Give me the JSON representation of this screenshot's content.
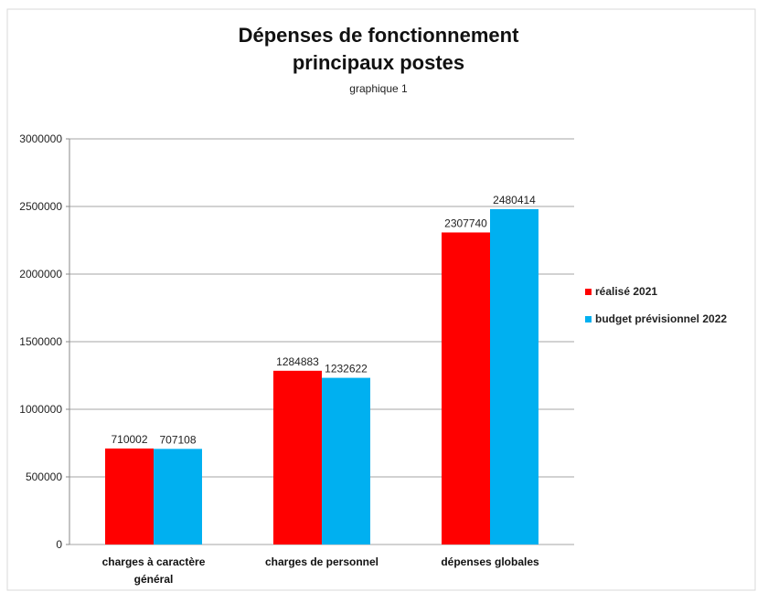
{
  "chart_data": {
    "type": "bar",
    "title": "Dépenses de fonctionnement principaux postes",
    "subtitle": "graphique 1",
    "categories": [
      "charges à caractère général",
      "charges de personnel",
      "dépenses globales"
    ],
    "series": [
      {
        "name": "réalisé 2021",
        "color": "#ff0000",
        "values": [
          710002,
          1284883,
          2307740
        ]
      },
      {
        "name": "budget prévisionnel 2022",
        "color": "#00b0f0",
        "values": [
          707108,
          1232622,
          2480414
        ]
      }
    ],
    "ylim": [
      0,
      3000000
    ],
    "yticks": [
      0,
      500000,
      1000000,
      1500000,
      2000000,
      2500000,
      3000000
    ],
    "grid": true,
    "legend": "right"
  }
}
